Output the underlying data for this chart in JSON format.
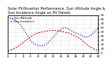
{
  "title": "Solar PV/Inverter Performance  Sun Altitude Angle &",
  "title2": "Sun Incidence Angle on PV Panels",
  "blue_label": "Sun Altitude",
  "red_label": "Sun Incidence",
  "x_start": 0,
  "x_end": 24,
  "y_min": 0,
  "y_max": 90,
  "background_color": "#ffffff",
  "plot_bg": "#ffffff",
  "grid_color": "#bbbbbb",
  "blue_color": "#0000cc",
  "red_color": "#cc0000",
  "title_fontsize": 3.8,
  "tick_fontsize": 3.2,
  "legend_fontsize": 3.0,
  "blue_x": [
    0,
    1,
    2,
    3,
    4,
    5,
    6,
    7,
    8,
    9,
    10,
    11,
    12,
    13,
    14,
    15,
    16,
    17,
    18,
    19,
    20,
    21,
    22,
    23,
    24
  ],
  "blue_y": [
    85,
    82,
    78,
    70,
    58,
    44,
    30,
    22,
    18,
    17,
    20,
    28,
    38,
    48,
    56,
    60,
    58,
    52,
    48,
    44,
    40,
    38,
    42,
    50,
    60
  ],
  "red_x": [
    0,
    1,
    2,
    3,
    4,
    5,
    6,
    7,
    8,
    9,
    10,
    11,
    12,
    13,
    14,
    15,
    16,
    17,
    18,
    19,
    20,
    21,
    22,
    23,
    24
  ],
  "red_y": [
    5,
    8,
    12,
    18,
    25,
    32,
    38,
    44,
    48,
    50,
    52,
    53,
    54,
    53,
    52,
    50,
    48,
    44,
    40,
    35,
    28,
    20,
    14,
    9,
    5
  ],
  "x_ticks": [
    0,
    2,
    4,
    6,
    8,
    10,
    12,
    14,
    16,
    18,
    20,
    22,
    24
  ],
  "y_ticks": [
    0,
    10,
    20,
    30,
    40,
    50,
    60,
    70,
    80,
    90
  ]
}
